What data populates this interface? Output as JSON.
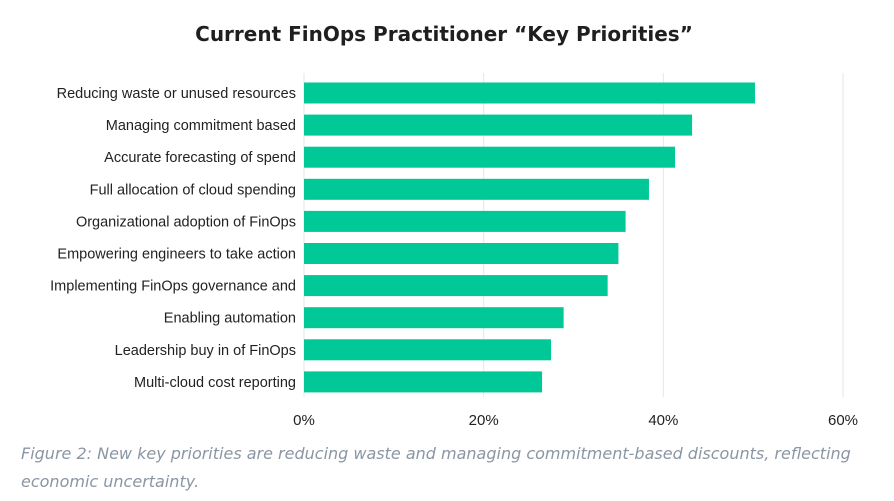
{
  "chart_data": {
    "type": "bar",
    "orientation": "horizontal",
    "title": "Current FinOps Practitioner “Key Priorities”",
    "xlabel": "",
    "ylabel": "",
    "categories": [
      "Reducing waste or unused resources",
      "Managing commitment based",
      "Accurate forecasting of spend",
      "Full allocation of cloud spending",
      "Organizational adoption of FinOps",
      "Empowering engineers to take action",
      "Implementing FinOps governance and",
      "Enabling automation",
      "Leadership buy in of FinOps",
      "Multi-cloud cost reporting"
    ],
    "values": [
      50.2,
      43.2,
      41.3,
      38.4,
      35.8,
      35.0,
      33.8,
      28.9,
      27.5,
      26.5
    ],
    "xlim": [
      0,
      60
    ],
    "xticks": [
      0,
      20,
      40,
      60
    ],
    "xtick_labels": [
      "0%",
      "20%",
      "40%",
      "60%"
    ],
    "grid": "vertical",
    "legend": "none",
    "bar_color": "#00c896"
  },
  "caption": "Figure 2: New key priorities are reducing waste and managing commitment-based discounts, reflecting economic uncertainty."
}
